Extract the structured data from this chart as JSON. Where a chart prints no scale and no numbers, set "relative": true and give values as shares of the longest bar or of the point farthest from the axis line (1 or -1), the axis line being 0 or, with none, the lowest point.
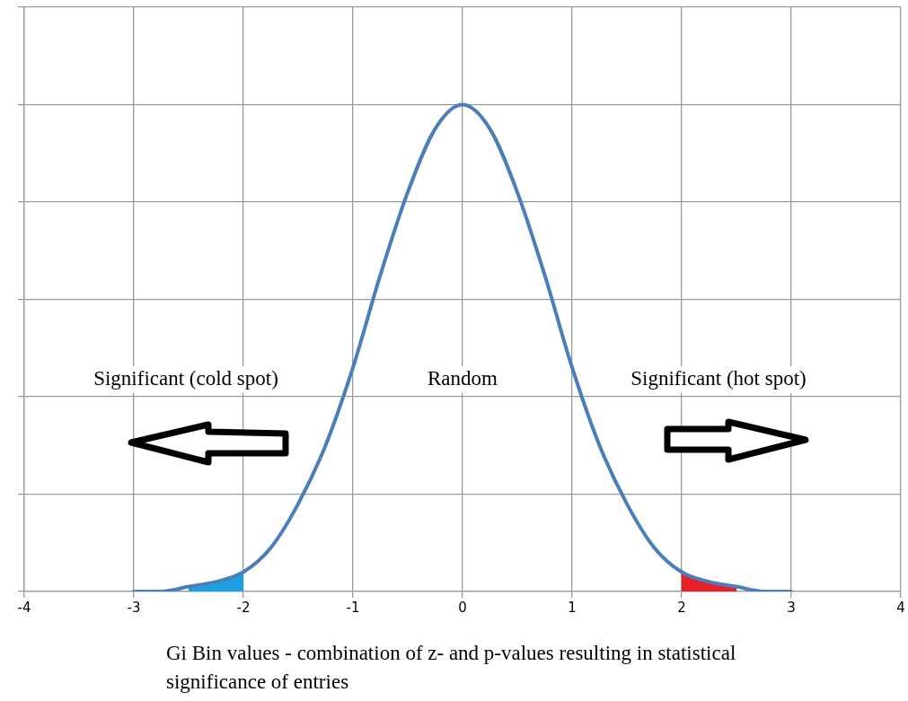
{
  "chart_data": {
    "type": "line",
    "xlabel": "Gi Bin values - combination of z- and p-values resulting in statistical significance of entries",
    "relative": true,
    "xlim": [
      -4,
      4
    ],
    "xticks": [
      -4,
      -3,
      -2,
      -1,
      0,
      1,
      2,
      3,
      4
    ],
    "grid": true,
    "legend": false,
    "marker": "none",
    "line_style": "solid",
    "series": [
      {
        "type": "area",
        "color": "#1ba1e2",
        "x": [
          -2.5,
          -2.25,
          -2
        ],
        "values": [
          0.01,
          0.02,
          0.04
        ]
      },
      {
        "type": "area",
        "color": "#e8202a",
        "x": [
          2,
          2.25,
          2.5
        ],
        "values": [
          0.04,
          0.02,
          0.01
        ]
      },
      {
        "type": "line",
        "color": "#4a7ebb",
        "x": [
          -3,
          -2.75,
          -2.5,
          -2.25,
          -2,
          -1.75,
          -1.5,
          -1.25,
          -1,
          -0.75,
          -0.5,
          -0.25,
          0,
          0.25,
          0.5,
          0.75,
          1,
          1.25,
          1.5,
          1.75,
          2,
          2.25,
          2.5,
          2.75,
          3
        ],
        "values": [
          0,
          0,
          0.01,
          0.02,
          0.04,
          0.09,
          0.18,
          0.3,
          0.46,
          0.65,
          0.82,
          0.95,
          1,
          0.95,
          0.82,
          0.65,
          0.46,
          0.3,
          0.18,
          0.09,
          0.04,
          0.02,
          0.01,
          0,
          0
        ]
      }
    ],
    "annotations": [
      "Significant (cold spot)",
      "Random",
      "Significant (hot spot)"
    ]
  }
}
